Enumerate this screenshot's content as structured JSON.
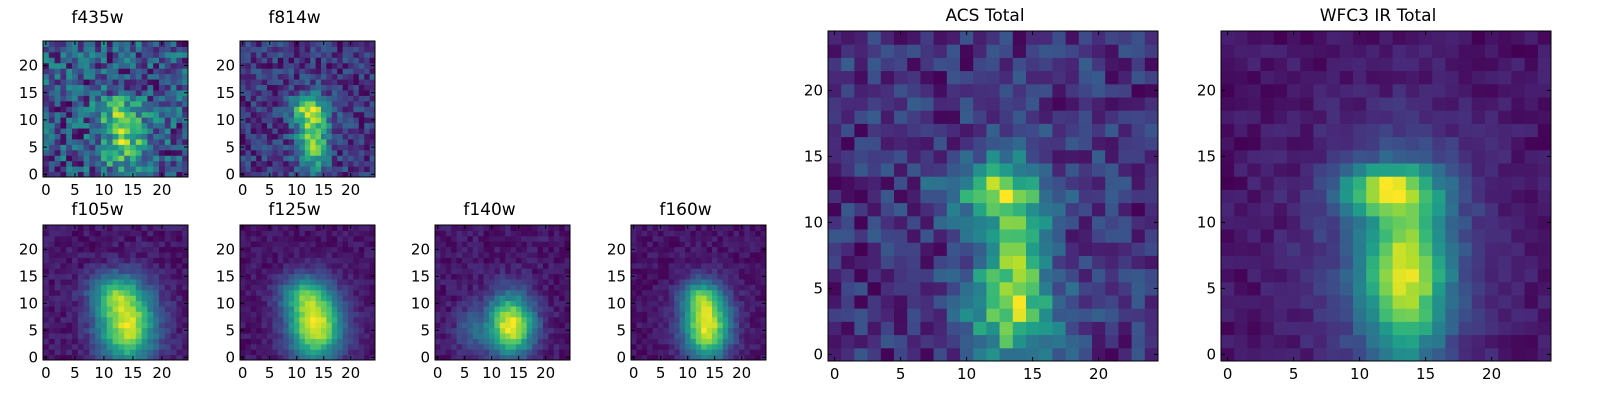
{
  "chart_data": [
    {
      "type": "heatmap",
      "title": "f435w",
      "colormap": "viridis",
      "xlim": [
        0,
        24
      ],
      "ylim": [
        0,
        24
      ],
      "origin": "lower",
      "xticks": [
        "0",
        "5",
        "10",
        "15",
        "20"
      ],
      "yticks": [
        "0",
        "5",
        "10",
        "15",
        "20"
      ],
      "grid": false,
      "noise": 0.55,
      "seed": 11,
      "features": [
        {
          "cx": 13.5,
          "cy": 6.5,
          "sx": 2.6,
          "sy": 4.5,
          "amp": 0.55
        },
        {
          "cx": 12.5,
          "cy": 12.0,
          "sx": 2.8,
          "sy": 1.8,
          "amp": 0.25
        }
      ]
    },
    {
      "type": "heatmap",
      "title": "f814w",
      "colormap": "viridis",
      "xlim": [
        0,
        24
      ],
      "ylim": [
        0,
        24
      ],
      "origin": "lower",
      "xticks": [
        "0",
        "5",
        "10",
        "15",
        "20"
      ],
      "yticks": [
        "0",
        "5",
        "10",
        "15",
        "20"
      ],
      "grid": false,
      "noise": 0.3,
      "seed": 23,
      "features": [
        {
          "cx": 13.0,
          "cy": 6.5,
          "sx": 2.0,
          "sy": 4.5,
          "amp": 0.6
        },
        {
          "cx": 12.0,
          "cy": 12.0,
          "sx": 2.5,
          "sy": 1.8,
          "amp": 0.45
        }
      ]
    },
    {
      "type": "heatmap",
      "title": "f105w",
      "colormap": "viridis",
      "xlim": [
        0,
        24
      ],
      "ylim": [
        0,
        24
      ],
      "origin": "lower",
      "xticks": [
        "0",
        "5",
        "10",
        "15",
        "20"
      ],
      "yticks": [
        "0",
        "5",
        "10",
        "15",
        "20"
      ],
      "grid": false,
      "noise": 0.12,
      "seed": 37,
      "features": [
        {
          "cx": 14.0,
          "cy": 6.0,
          "sx": 3.5,
          "sy": 5.0,
          "amp": 0.8
        },
        {
          "cx": 11.5,
          "cy": 12.0,
          "sx": 3.0,
          "sy": 2.5,
          "amp": 0.35
        }
      ]
    },
    {
      "type": "heatmap",
      "title": "f125w",
      "colormap": "viridis",
      "xlim": [
        0,
        24
      ],
      "ylim": [
        0,
        24
      ],
      "origin": "lower",
      "xticks": [
        "0",
        "5",
        "10",
        "15",
        "20"
      ],
      "yticks": [
        "0",
        "5",
        "10",
        "15",
        "20"
      ],
      "grid": false,
      "noise": 0.1,
      "seed": 41,
      "features": [
        {
          "cx": 13.5,
          "cy": 6.0,
          "sx": 3.5,
          "sy": 4.5,
          "amp": 0.85
        },
        {
          "cx": 11.0,
          "cy": 12.0,
          "sx": 3.0,
          "sy": 2.5,
          "amp": 0.35
        }
      ]
    },
    {
      "type": "heatmap",
      "title": "f140w",
      "colormap": "viridis",
      "xlim": [
        0,
        24
      ],
      "ylim": [
        0,
        24
      ],
      "origin": "lower",
      "xticks": [
        "0",
        "5",
        "10",
        "15",
        "20"
      ],
      "yticks": [
        "0",
        "5",
        "10",
        "15",
        "20"
      ],
      "grid": false,
      "noise": 0.12,
      "seed": 53,
      "features": [
        {
          "cx": 13.5,
          "cy": 6.0,
          "sx": 3.0,
          "sy": 4.0,
          "amp": 0.85
        },
        {
          "cx": 6.0,
          "cy": 5.0,
          "sx": 2.0,
          "sy": 3.0,
          "amp": 0.2
        }
      ]
    },
    {
      "type": "heatmap",
      "title": "f160w",
      "colormap": "viridis",
      "xlim": [
        0,
        24
      ],
      "ylim": [
        0,
        24
      ],
      "origin": "lower",
      "xticks": [
        "0",
        "5",
        "10",
        "15",
        "20"
      ],
      "yticks": [
        "0",
        "5",
        "10",
        "15",
        "20"
      ],
      "grid": false,
      "noise": 0.1,
      "seed": 67,
      "features": [
        {
          "cx": 13.5,
          "cy": 6.0,
          "sx": 3.0,
          "sy": 4.5,
          "amp": 0.85
        },
        {
          "cx": 12.0,
          "cy": 11.5,
          "sx": 2.5,
          "sy": 2.0,
          "amp": 0.3
        }
      ]
    },
    {
      "type": "heatmap",
      "title": "ACS Total",
      "colormap": "viridis",
      "xlim": [
        0,
        24
      ],
      "ylim": [
        0,
        24
      ],
      "origin": "lower",
      "xticks": [
        "0",
        "5",
        "10",
        "15",
        "20"
      ],
      "yticks": [
        "0",
        "5",
        "10",
        "15",
        "20"
      ],
      "grid": false,
      "noise": 0.28,
      "seed": 79,
      "features": [
        {
          "cx": 13.5,
          "cy": 6.0,
          "sx": 2.0,
          "sy": 5.0,
          "amp": 0.6
        },
        {
          "cx": 12.0,
          "cy": 12.5,
          "sx": 2.8,
          "sy": 1.5,
          "amp": 0.45
        },
        {
          "cx": 14.0,
          "cy": 3.0,
          "sx": 4.0,
          "sy": 2.0,
          "amp": 0.15
        }
      ]
    },
    {
      "type": "heatmap",
      "title": "WFC3 IR Total",
      "colormap": "viridis",
      "xlim": [
        0,
        24
      ],
      "ylim": [
        0,
        24
      ],
      "origin": "lower",
      "xticks": [
        "0",
        "5",
        "10",
        "15",
        "20"
      ],
      "yticks": [
        "0",
        "5",
        "10",
        "15",
        "20"
      ],
      "grid": false,
      "noise": 0.12,
      "seed": 83,
      "features": [
        {
          "cx": 13.5,
          "cy": 6.0,
          "sx": 2.2,
          "sy": 4.5,
          "amp": 0.8
        },
        {
          "cx": 12.0,
          "cy": 12.5,
          "sx": 2.5,
          "sy": 1.2,
          "amp": 0.7
        },
        {
          "cx": 13.0,
          "cy": 8.0,
          "sx": 5.0,
          "sy": 7.0,
          "amp": 0.25
        }
      ]
    }
  ]
}
